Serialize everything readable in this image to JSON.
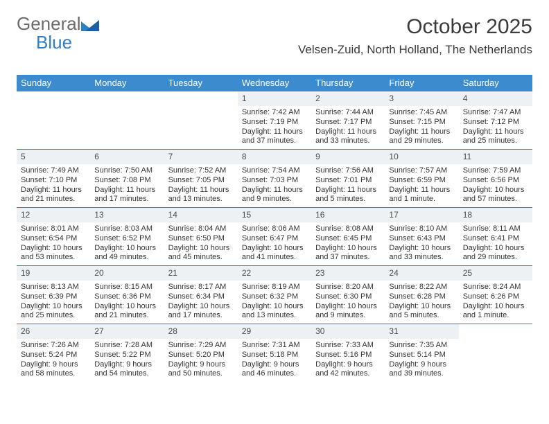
{
  "brand": {
    "part1": "General",
    "part2": "Blue"
  },
  "title": "October 2025",
  "location": "Velsen-Zuid, North Holland, The Netherlands",
  "colors": {
    "header_bg": "#3c8bcf",
    "header_fg": "#ffffff",
    "row_border": "#2f7fc4",
    "daynum_bg": "#eef1f3",
    "text": "#333333",
    "logo_gray": "#6b6b6b",
    "logo_blue": "#2f7fc4"
  },
  "weekdays": [
    "Sunday",
    "Monday",
    "Tuesday",
    "Wednesday",
    "Thursday",
    "Friday",
    "Saturday"
  ],
  "weeks": [
    [
      null,
      null,
      null,
      {
        "n": "1",
        "sr": "Sunrise: 7:42 AM",
        "ss": "Sunset: 7:19 PM",
        "dl": "Daylight: 11 hours and 37 minutes."
      },
      {
        "n": "2",
        "sr": "Sunrise: 7:44 AM",
        "ss": "Sunset: 7:17 PM",
        "dl": "Daylight: 11 hours and 33 minutes."
      },
      {
        "n": "3",
        "sr": "Sunrise: 7:45 AM",
        "ss": "Sunset: 7:15 PM",
        "dl": "Daylight: 11 hours and 29 minutes."
      },
      {
        "n": "4",
        "sr": "Sunrise: 7:47 AM",
        "ss": "Sunset: 7:12 PM",
        "dl": "Daylight: 11 hours and 25 minutes."
      }
    ],
    [
      {
        "n": "5",
        "sr": "Sunrise: 7:49 AM",
        "ss": "Sunset: 7:10 PM",
        "dl": "Daylight: 11 hours and 21 minutes."
      },
      {
        "n": "6",
        "sr": "Sunrise: 7:50 AM",
        "ss": "Sunset: 7:08 PM",
        "dl": "Daylight: 11 hours and 17 minutes."
      },
      {
        "n": "7",
        "sr": "Sunrise: 7:52 AM",
        "ss": "Sunset: 7:05 PM",
        "dl": "Daylight: 11 hours and 13 minutes."
      },
      {
        "n": "8",
        "sr": "Sunrise: 7:54 AM",
        "ss": "Sunset: 7:03 PM",
        "dl": "Daylight: 11 hours and 9 minutes."
      },
      {
        "n": "9",
        "sr": "Sunrise: 7:56 AM",
        "ss": "Sunset: 7:01 PM",
        "dl": "Daylight: 11 hours and 5 minutes."
      },
      {
        "n": "10",
        "sr": "Sunrise: 7:57 AM",
        "ss": "Sunset: 6:59 PM",
        "dl": "Daylight: 11 hours and 1 minute."
      },
      {
        "n": "11",
        "sr": "Sunrise: 7:59 AM",
        "ss": "Sunset: 6:56 PM",
        "dl": "Daylight: 10 hours and 57 minutes."
      }
    ],
    [
      {
        "n": "12",
        "sr": "Sunrise: 8:01 AM",
        "ss": "Sunset: 6:54 PM",
        "dl": "Daylight: 10 hours and 53 minutes."
      },
      {
        "n": "13",
        "sr": "Sunrise: 8:03 AM",
        "ss": "Sunset: 6:52 PM",
        "dl": "Daylight: 10 hours and 49 minutes."
      },
      {
        "n": "14",
        "sr": "Sunrise: 8:04 AM",
        "ss": "Sunset: 6:50 PM",
        "dl": "Daylight: 10 hours and 45 minutes."
      },
      {
        "n": "15",
        "sr": "Sunrise: 8:06 AM",
        "ss": "Sunset: 6:47 PM",
        "dl": "Daylight: 10 hours and 41 minutes."
      },
      {
        "n": "16",
        "sr": "Sunrise: 8:08 AM",
        "ss": "Sunset: 6:45 PM",
        "dl": "Daylight: 10 hours and 37 minutes."
      },
      {
        "n": "17",
        "sr": "Sunrise: 8:10 AM",
        "ss": "Sunset: 6:43 PM",
        "dl": "Daylight: 10 hours and 33 minutes."
      },
      {
        "n": "18",
        "sr": "Sunrise: 8:11 AM",
        "ss": "Sunset: 6:41 PM",
        "dl": "Daylight: 10 hours and 29 minutes."
      }
    ],
    [
      {
        "n": "19",
        "sr": "Sunrise: 8:13 AM",
        "ss": "Sunset: 6:39 PM",
        "dl": "Daylight: 10 hours and 25 minutes."
      },
      {
        "n": "20",
        "sr": "Sunrise: 8:15 AM",
        "ss": "Sunset: 6:36 PM",
        "dl": "Daylight: 10 hours and 21 minutes."
      },
      {
        "n": "21",
        "sr": "Sunrise: 8:17 AM",
        "ss": "Sunset: 6:34 PM",
        "dl": "Daylight: 10 hours and 17 minutes."
      },
      {
        "n": "22",
        "sr": "Sunrise: 8:19 AM",
        "ss": "Sunset: 6:32 PM",
        "dl": "Daylight: 10 hours and 13 minutes."
      },
      {
        "n": "23",
        "sr": "Sunrise: 8:20 AM",
        "ss": "Sunset: 6:30 PM",
        "dl": "Daylight: 10 hours and 9 minutes."
      },
      {
        "n": "24",
        "sr": "Sunrise: 8:22 AM",
        "ss": "Sunset: 6:28 PM",
        "dl": "Daylight: 10 hours and 5 minutes."
      },
      {
        "n": "25",
        "sr": "Sunrise: 8:24 AM",
        "ss": "Sunset: 6:26 PM",
        "dl": "Daylight: 10 hours and 1 minute."
      }
    ],
    [
      {
        "n": "26",
        "sr": "Sunrise: 7:26 AM",
        "ss": "Sunset: 5:24 PM",
        "dl": "Daylight: 9 hours and 58 minutes."
      },
      {
        "n": "27",
        "sr": "Sunrise: 7:28 AM",
        "ss": "Sunset: 5:22 PM",
        "dl": "Daylight: 9 hours and 54 minutes."
      },
      {
        "n": "28",
        "sr": "Sunrise: 7:29 AM",
        "ss": "Sunset: 5:20 PM",
        "dl": "Daylight: 9 hours and 50 minutes."
      },
      {
        "n": "29",
        "sr": "Sunrise: 7:31 AM",
        "ss": "Sunset: 5:18 PM",
        "dl": "Daylight: 9 hours and 46 minutes."
      },
      {
        "n": "30",
        "sr": "Sunrise: 7:33 AM",
        "ss": "Sunset: 5:16 PM",
        "dl": "Daylight: 9 hours and 42 minutes."
      },
      {
        "n": "31",
        "sr": "Sunrise: 7:35 AM",
        "ss": "Sunset: 5:14 PM",
        "dl": "Daylight: 9 hours and 39 minutes."
      },
      null
    ]
  ]
}
